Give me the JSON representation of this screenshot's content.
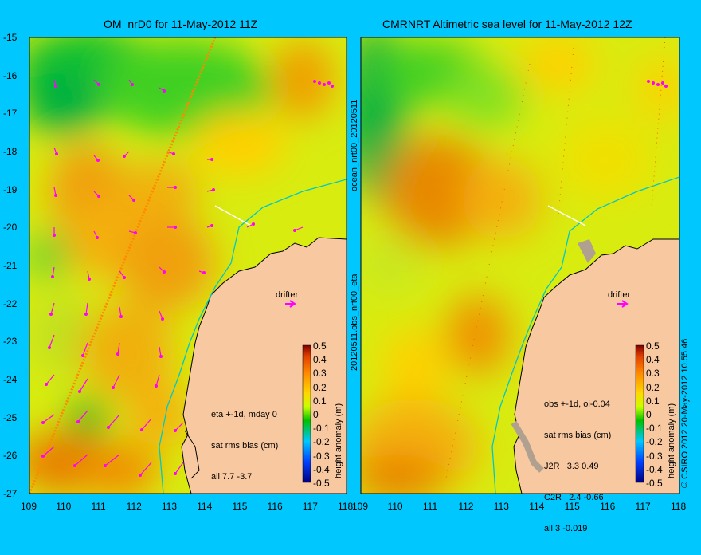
{
  "left_panel": {
    "title": "OM_nrD0 for 11-May-2012 11Z",
    "stats": [
      "eta +-1d, mday 0",
      "sat rms bias (cm)",
      "all 7.7 -3.7"
    ],
    "drifter_label": "drifter",
    "colorbar_label": "height anomaly (m)"
  },
  "right_panel": {
    "title": "CMRNRT Altimetric sea level  for 11-May-2012 12Z",
    "stats": [
      "obs +-1d, oi-0.04",
      "sat rms bias (cm)",
      "J2R   3.3 0.49",
      "C2R   2.4 -0.66",
      "all 3 -0.019"
    ],
    "drifter_label": "drifter",
    "colorbar_label": "height anomaly (m)"
  },
  "side_labels": {
    "middle_top": "ocean_nrt00_20120511",
    "middle_bottom": "20120511.obs_nrt00_eta",
    "right_edge": "© CSIRO 2012  20-May-2012 10:55:46"
  },
  "axes": {
    "lon_ticks": [
      "109",
      "110",
      "111",
      "112",
      "113",
      "114",
      "115",
      "116",
      "117",
      "118"
    ],
    "lat_ticks": [
      "-15",
      "-16",
      "-17",
      "-18",
      "-19",
      "-20",
      "-21",
      "-22",
      "-23",
      "-24",
      "-25",
      "-26",
      "-27"
    ],
    "lon_range": [
      109,
      118
    ],
    "lat_range": [
      -27,
      -15
    ]
  },
  "colorbar": {
    "ticks": [
      "0.5",
      "0.4",
      "0.3",
      "0.2",
      "0.1",
      "0",
      "-0.1",
      "-0.2",
      "-0.3",
      "-0.4",
      "-0.5"
    ],
    "range": [
      -0.5,
      0.5
    ]
  },
  "colors": {
    "land": "#f8c8a0",
    "coast_line": "#00c8c8",
    "vectors": "#ff00ff",
    "track": "#ff8800",
    "frame": "#00c8ff"
  }
}
